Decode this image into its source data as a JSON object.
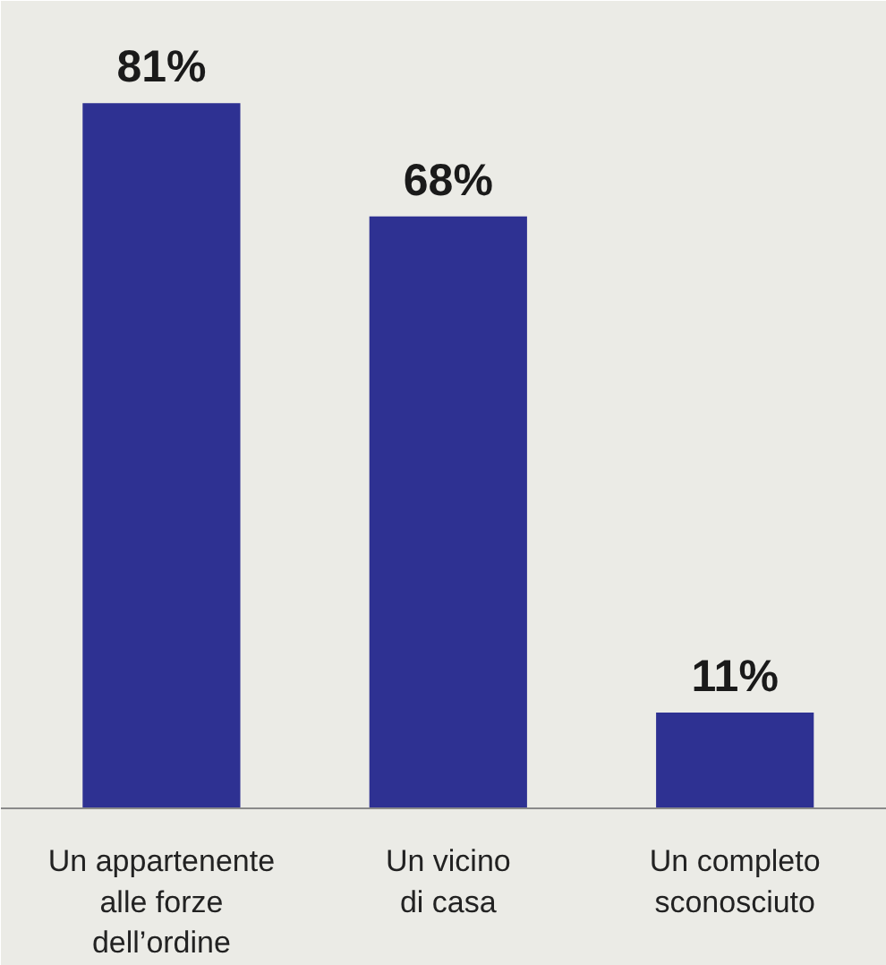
{
  "chart_data": {
    "type": "bar",
    "categories": [
      "Un appartenente\nalle forze\ndell’ordine",
      "Un vicino\ndi casa",
      "Un completo\nsconosciuto"
    ],
    "values": [
      81,
      68,
      11
    ],
    "value_labels": [
      "81%",
      "68%",
      "11%"
    ],
    "color": "#2e3192",
    "grid": false
  }
}
